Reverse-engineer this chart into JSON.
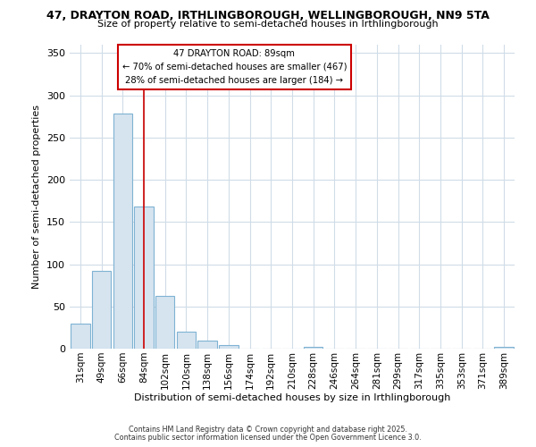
{
  "title1": "47, DRAYTON ROAD, IRTHLINGBOROUGH, WELLINGBOROUGH, NN9 5TA",
  "title2": "Size of property relative to semi-detached houses in Irthlingborough",
  "xlabel": "Distribution of semi-detached houses by size in Irthlingborough",
  "ylabel": "Number of semi-detached properties",
  "categories": [
    "31sqm",
    "49sqm",
    "66sqm",
    "84sqm",
    "102sqm",
    "120sqm",
    "138sqm",
    "156sqm",
    "174sqm",
    "192sqm",
    "210sqm",
    "228sqm",
    "246sqm",
    "264sqm",
    "281sqm",
    "299sqm",
    "317sqm",
    "335sqm",
    "353sqm",
    "371sqm",
    "389sqm"
  ],
  "values": [
    30,
    92,
    278,
    168,
    62,
    20,
    10,
    4,
    0,
    0,
    0,
    2,
    0,
    0,
    0,
    0,
    0,
    0,
    0,
    0,
    2
  ],
  "bar_color": "#d6e4f0",
  "bar_edge_color": "#7fb3d3",
  "property_line_x": 3.0,
  "annotation_title": "47 DRAYTON ROAD: 89sqm",
  "annotation_line1": "← 70% of semi-detached houses are smaller (467)",
  "annotation_line2": "28% of semi-detached houses are larger (184) →",
  "annotation_box_color": "#ffffff",
  "annotation_box_edge_color": "#cc0000",
  "vline_color": "#cc0000",
  "ylim": [
    0,
    360
  ],
  "yticks": [
    0,
    50,
    100,
    150,
    200,
    250,
    300,
    350
  ],
  "footer1": "Contains HM Land Registry data © Crown copyright and database right 2025.",
  "footer2": "Contains public sector information licensed under the Open Government Licence 3.0.",
  "bg_color": "#ffffff",
  "plot_bg_color": "#ffffff",
  "grid_color": "#d0dce8"
}
